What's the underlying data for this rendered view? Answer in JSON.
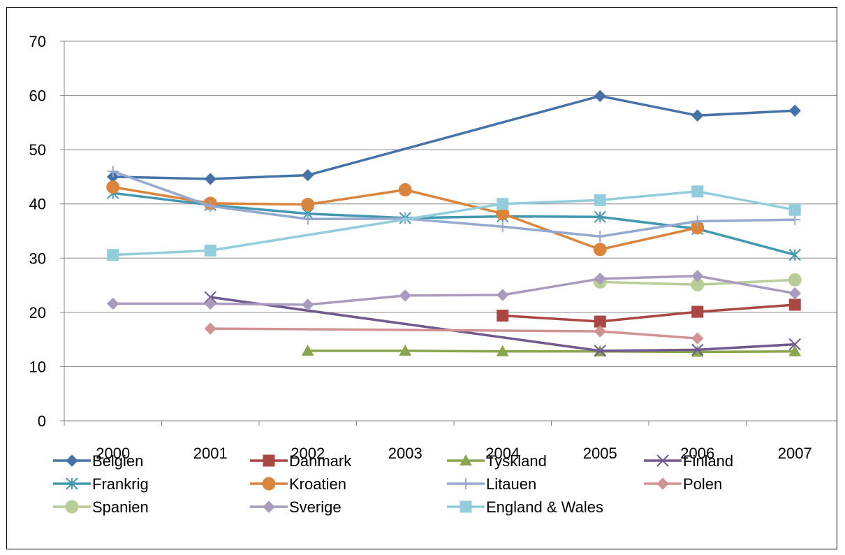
{
  "chart_data": {
    "type": "line",
    "title": "",
    "xlabel": "",
    "ylabel": "",
    "categories": [
      "2000",
      "2001",
      "2002",
      "2003",
      "2004",
      "2005",
      "2006",
      "2007"
    ],
    "ylim": [
      0,
      70
    ],
    "yticks": [
      0,
      10,
      20,
      30,
      40,
      50,
      60,
      70
    ],
    "grid": true,
    "legend_position": "bottom",
    "series": [
      {
        "name": "Belgien",
        "color": "#4572A7",
        "marker": "diamond",
        "values": [
          45.0,
          44.6,
          45.3,
          null,
          null,
          59.9,
          56.3,
          57.2
        ]
      },
      {
        "name": "Danmark",
        "color": "#AA4643",
        "marker": "square",
        "values": [
          null,
          null,
          null,
          null,
          19.4,
          18.3,
          20.1,
          21.4
        ]
      },
      {
        "name": "Tyskland",
        "color": "#89A54E",
        "marker": "triangle",
        "values": [
          null,
          null,
          12.9,
          12.9,
          12.8,
          12.8,
          12.7,
          12.8
        ]
      },
      {
        "name": "Finland",
        "color": "#71588F",
        "marker": "x",
        "values": [
          null,
          22.8,
          null,
          null,
          null,
          12.9,
          13.1,
          14.1
        ]
      },
      {
        "name": "Frankrig",
        "color": "#4198AF",
        "marker": "asterisk",
        "values": [
          42.0,
          39.8,
          38.2,
          37.4,
          37.7,
          37.6,
          35.4,
          30.6
        ]
      },
      {
        "name": "Kroatien",
        "color": "#DB843D",
        "marker": "circle",
        "values": [
          43.1,
          40.1,
          39.9,
          42.6,
          38.2,
          31.6,
          35.6,
          null
        ]
      },
      {
        "name": "Litauen",
        "color": "#93A9CF",
        "marker": "plus",
        "values": [
          46.0,
          39.6,
          37.2,
          37.3,
          35.8,
          34.0,
          36.8,
          37.1
        ]
      },
      {
        "name": "Polen",
        "color": "#D19392",
        "marker": "diamond",
        "values": [
          null,
          17.0,
          null,
          null,
          null,
          16.5,
          15.2,
          null
        ]
      },
      {
        "name": "Spanien",
        "color": "#B9CD96",
        "marker": "circle",
        "values": [
          null,
          null,
          null,
          null,
          null,
          25.6,
          25.1,
          26.0
        ]
      },
      {
        "name": "Sverige",
        "color": "#A99BBD",
        "marker": "diamond",
        "values": [
          21.6,
          21.6,
          21.4,
          23.1,
          23.2,
          26.2,
          26.7,
          23.5
        ]
      },
      {
        "name": "England & Wales",
        "color": "#92CDDC",
        "marker": "square",
        "values": [
          30.6,
          31.4,
          null,
          null,
          40.0,
          40.7,
          42.3,
          38.9
        ]
      }
    ]
  }
}
